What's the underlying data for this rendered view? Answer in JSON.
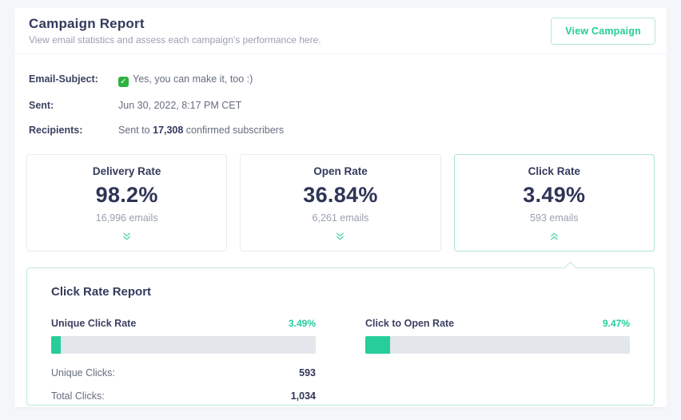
{
  "colors": {
    "accent_teal": "#24cd9a",
    "accent_teal_light_border": "#b5e8d4",
    "navy_text": "#333a5c",
    "gray_text": "#9aa0b0",
    "bar_track": "#e3e6ea",
    "check_emoji_green": "#2db13f"
  },
  "header": {
    "title": "Campaign Report",
    "subtitle": "View email statistics and assess each campaign's performance here.",
    "view_campaign_label": "View Campaign"
  },
  "meta": {
    "subject_label": "Email-Subject:",
    "subject_value": "Yes, you can make it, too :)",
    "subject_check_icon": "green-check-emoji",
    "sent_label": "Sent:",
    "sent_value": "Jun 30, 2022, 8:17 PM CET",
    "recipients_label": "Recipients:",
    "recipients_prefix": "Sent to ",
    "recipients_count": "17,308",
    "recipients_suffix": " confirmed subscribers"
  },
  "stat_cards": [
    {
      "label": "Delivery Rate",
      "value": "98.2%",
      "sub": "16,996 emails",
      "state": "collapsed",
      "chevron_icon": "chevron-double-down-icon"
    },
    {
      "label": "Open Rate",
      "value": "36.84%",
      "sub": "6,261 emails",
      "state": "collapsed",
      "chevron_icon": "chevron-double-down-icon"
    },
    {
      "label": "Click Rate",
      "value": "3.49%",
      "sub": "593 emails",
      "state": "expanded",
      "chevron_icon": "chevron-double-up-icon"
    }
  ],
  "report": {
    "title": "Click Rate Report",
    "bars": [
      {
        "label": "Unique Click Rate",
        "value": "3.49%",
        "percent": 3.49
      },
      {
        "label": "Click to Open Rate",
        "value": "9.47%",
        "percent": 9.47
      }
    ],
    "stats": [
      {
        "label": "Unique Clicks:",
        "value": "593"
      },
      {
        "label": "Total Clicks:",
        "value": "1,034"
      }
    ]
  }
}
